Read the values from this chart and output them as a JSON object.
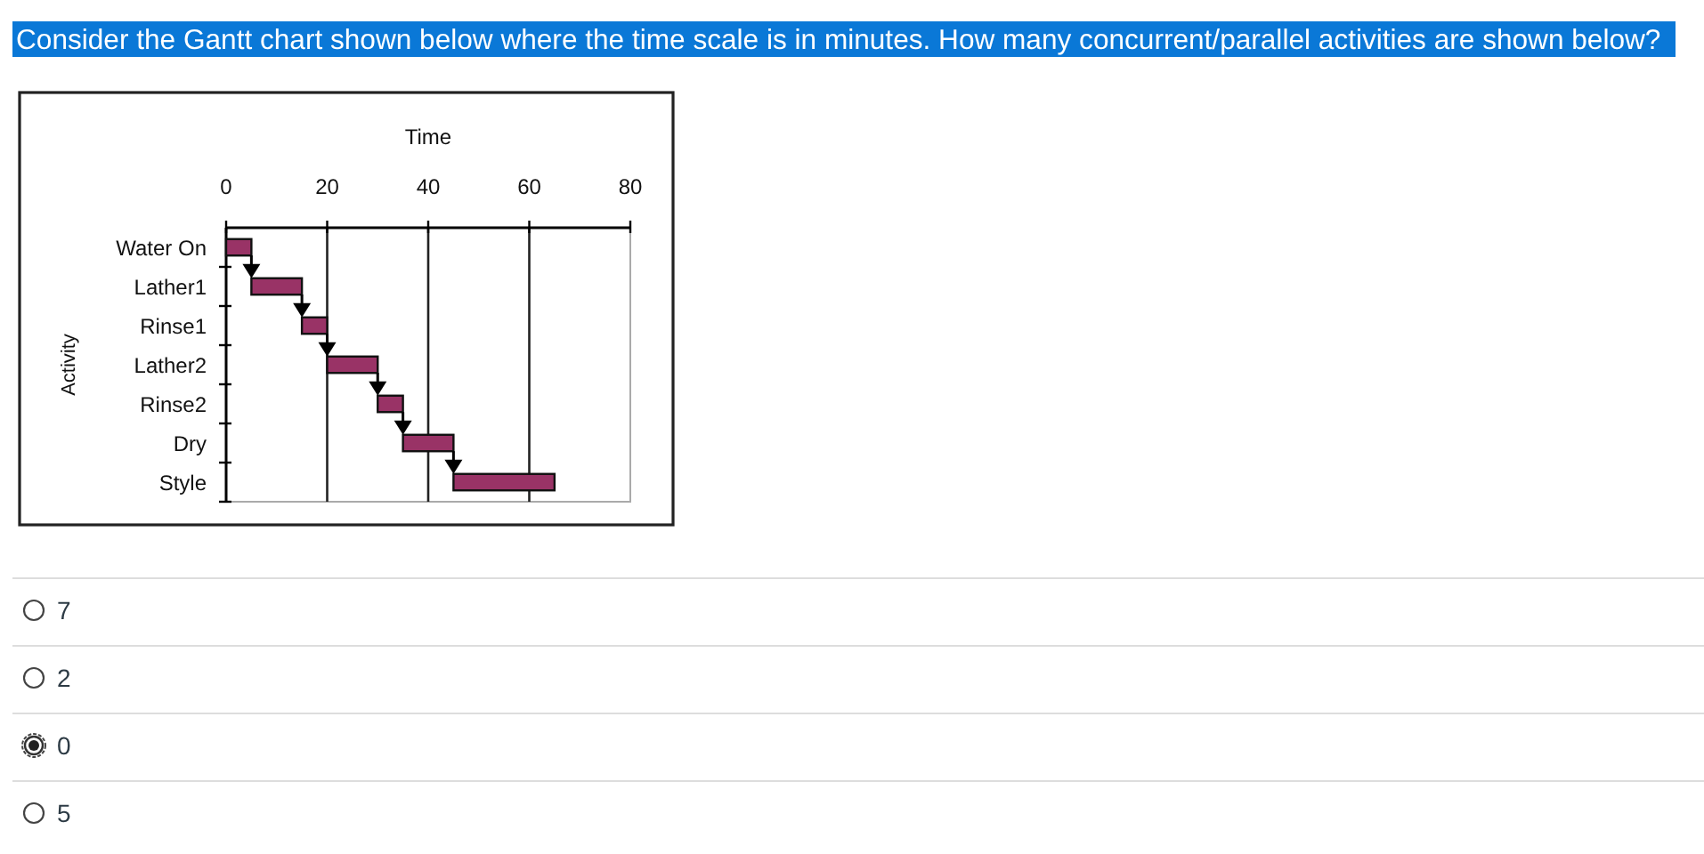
{
  "chart_data": {
    "type": "bar",
    "orientation": "horizontal",
    "title": "Consider the Gantt chart shown below where the time scale is in minutes. How many concurrent/parallel activities are shown below?",
    "xlabel": "Time",
    "ylabel": "Activity",
    "categories": [
      "Water On",
      "Lather1",
      "Rinse1",
      "Lather2",
      "Rinse2",
      "Dry",
      "Style"
    ],
    "base": [
      0,
      5,
      15,
      20,
      30,
      35,
      45
    ],
    "values": [
      5,
      10,
      5,
      10,
      5,
      10,
      20
    ],
    "color": "#993366",
    "xlim": [
      0,
      80
    ],
    "xticks": [
      0,
      20,
      40,
      60,
      80
    ],
    "grid": "x",
    "annotations": [
      "7",
      "2",
      "0",
      "5"
    ]
  }
}
